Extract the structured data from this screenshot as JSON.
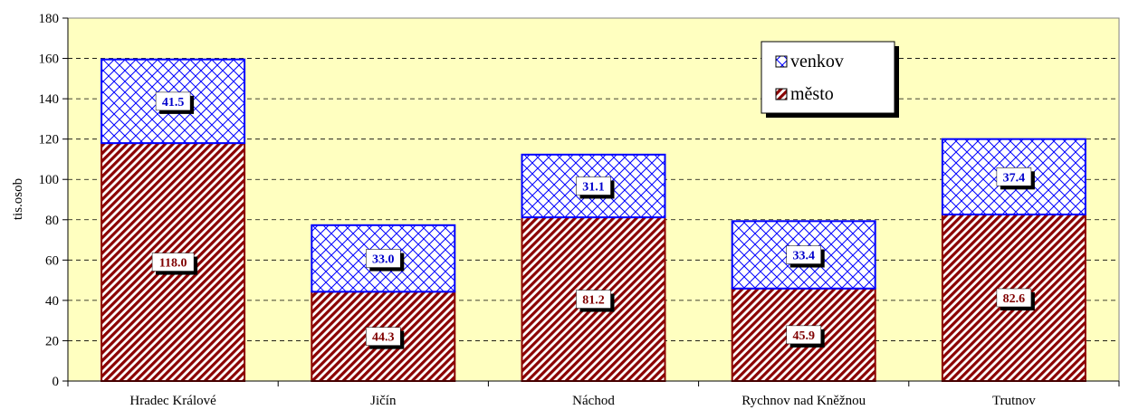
{
  "chart_data": {
    "type": "bar",
    "stacked": true,
    "categories": [
      "Hradec Králové",
      "Jičín",
      "Náchod",
      "Rychnov nad Kněžnou",
      "Trutnov"
    ],
    "series": [
      {
        "name": "město",
        "values": [
          118.0,
          44.3,
          81.2,
          45.9,
          82.6
        ],
        "color": "#8B0000",
        "pattern": "diagonal-hatch"
      },
      {
        "name": "venkov",
        "values": [
          41.5,
          33.0,
          31.1,
          33.4,
          37.4
        ],
        "color": "#0000FF",
        "pattern": "crosshatch"
      }
    ],
    "data_labels": {
      "město": [
        "118.0",
        "44.3",
        "81.2",
        "45.9",
        "82.6"
      ],
      "venkov": [
        "41.5",
        "33.0",
        "31.1",
        "33.4",
        "37.4"
      ]
    },
    "ylabel": "tis.osob",
    "ylim": [
      0,
      180
    ],
    "yticks": [
      "0",
      "20",
      "40",
      "60",
      "80",
      "100",
      "120",
      "140",
      "160",
      "180"
    ],
    "grid": true,
    "legend_position": "top-right",
    "plot_background": "#FFFFC0"
  }
}
